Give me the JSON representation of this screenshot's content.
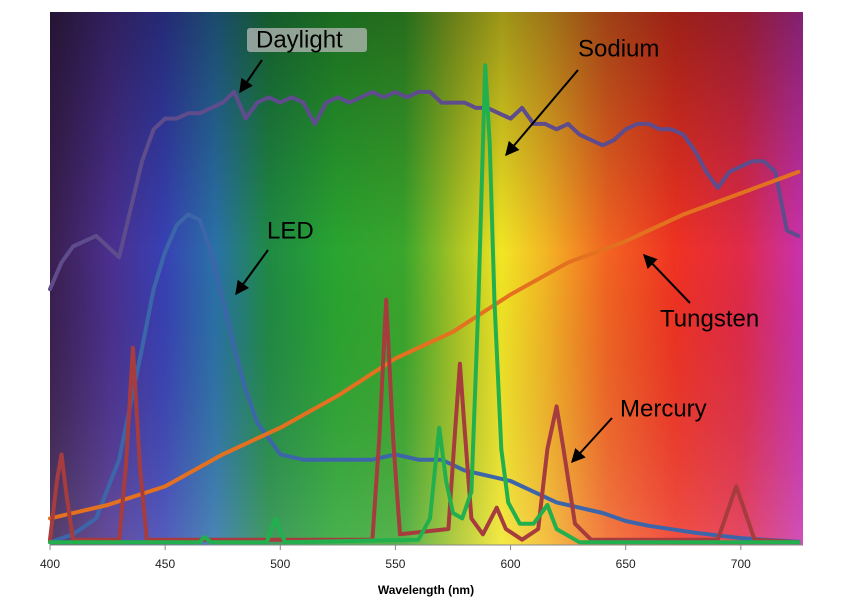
{
  "chart_data": {
    "type": "line",
    "x_label": "Wavelength (nm)",
    "xlim": [
      400,
      727
    ],
    "xticks": [
      400,
      450,
      500,
      550,
      600,
      650,
      700
    ],
    "ylim": [
      0,
      100
    ],
    "series": [
      {
        "name": "Daylight",
        "color": "#5e4c8c",
        "x": [
          400,
          405,
          410,
          415,
          420,
          425,
          430,
          435,
          440,
          445,
          450,
          455,
          460,
          465,
          470,
          475,
          480,
          485,
          490,
          495,
          500,
          505,
          510,
          515,
          520,
          525,
          530,
          535,
          540,
          545,
          550,
          555,
          560,
          565,
          570,
          575,
          580,
          585,
          590,
          595,
          600,
          605,
          610,
          615,
          620,
          625,
          630,
          635,
          640,
          645,
          650,
          655,
          660,
          665,
          670,
          675,
          680,
          685,
          690,
          695,
          700,
          705,
          710,
          715,
          720,
          725
        ],
        "values": [
          48,
          53,
          56,
          57,
          58,
          56,
          54,
          63,
          72,
          78,
          80,
          80,
          81,
          81,
          82,
          83,
          85,
          80,
          83,
          84,
          83,
          84,
          83,
          79,
          83,
          84,
          83,
          84,
          85,
          84,
          85,
          84,
          85,
          85,
          83,
          83,
          83,
          82,
          82,
          81,
          80,
          82,
          79,
          79,
          78,
          79,
          77,
          76,
          75,
          76,
          78,
          79,
          79,
          78,
          78,
          77,
          74,
          70,
          67,
          70,
          71,
          72,
          72,
          70,
          59,
          58
        ]
      },
      {
        "name": "LED",
        "color": "#3d66aa",
        "x": [
          400,
          410,
          420,
          430,
          440,
          445,
          450,
          455,
          460,
          465,
          470,
          475,
          480,
          485,
          490,
          495,
          500,
          510,
          520,
          530,
          540,
          550,
          560,
          570,
          580,
          590,
          600,
          610,
          620,
          630,
          640,
          650,
          660,
          680,
          700,
          725
        ],
        "values": [
          0.5,
          2,
          5,
          16,
          37,
          48,
          55,
          60,
          62,
          61,
          55,
          46,
          37,
          29,
          23,
          20,
          17,
          16,
          16,
          16,
          16,
          17,
          16,
          16,
          14,
          13,
          12,
          10,
          8,
          7,
          6,
          4.5,
          3.6,
          2.3,
          1.3,
          0.6
        ]
      },
      {
        "name": "Tungsten",
        "color": "#e3711f",
        "x": [
          400,
          425,
          450,
          475,
          500,
          525,
          550,
          575,
          600,
          625,
          650,
          675,
          700,
          725
        ],
        "values": [
          5,
          7.5,
          11,
          17,
          22,
          28,
          35,
          40,
          47,
          53,
          57,
          62,
          66,
          70
        ]
      },
      {
        "name": "Mercury",
        "color": "#a63c3e",
        "x": [
          400,
          403,
          405,
          407,
          410,
          430,
          433,
          436,
          439,
          442,
          540,
          543,
          546,
          549,
          552,
          573,
          576,
          578,
          580,
          583,
          588,
          594,
          598,
          605,
          612,
          616,
          620,
          623,
          628,
          635,
          690,
          694,
          698,
          702,
          706,
          725
        ],
        "values": [
          1,
          12,
          17,
          10,
          1,
          1,
          15,
          37,
          15,
          1,
          1,
          20,
          46,
          20,
          2,
          3,
          22,
          34,
          22,
          5,
          2,
          7,
          3,
          1,
          3,
          18,
          26,
          18,
          4,
          1,
          1,
          6,
          11,
          6,
          1,
          0.5
        ]
      },
      {
        "name": "Sodium",
        "color": "#22b04e",
        "x": [
          400,
          465,
          467,
          470,
          494,
          498,
          502,
          560,
          565,
          569,
          572,
          575,
          579,
          583,
          586,
          589,
          591,
          593,
          596,
          599,
          604,
          610,
          616,
          620,
          630,
          725
        ],
        "values": [
          0.5,
          0.5,
          1.5,
          0.5,
          0.5,
          5,
          0.5,
          1,
          5,
          22,
          12,
          6,
          5,
          10,
          45,
          90,
          75,
          46,
          18,
          8,
          4,
          4,
          7.5,
          3,
          0.5,
          0.5
        ]
      }
    ],
    "annotations": [
      {
        "text": "Daylight",
        "series": 0
      },
      {
        "text": "Sodium",
        "series": 4
      },
      {
        "text": "LED",
        "series": 1
      },
      {
        "text": "Tungsten",
        "series": 2
      },
      {
        "text": "Mercury",
        "series": 3
      }
    ]
  }
}
